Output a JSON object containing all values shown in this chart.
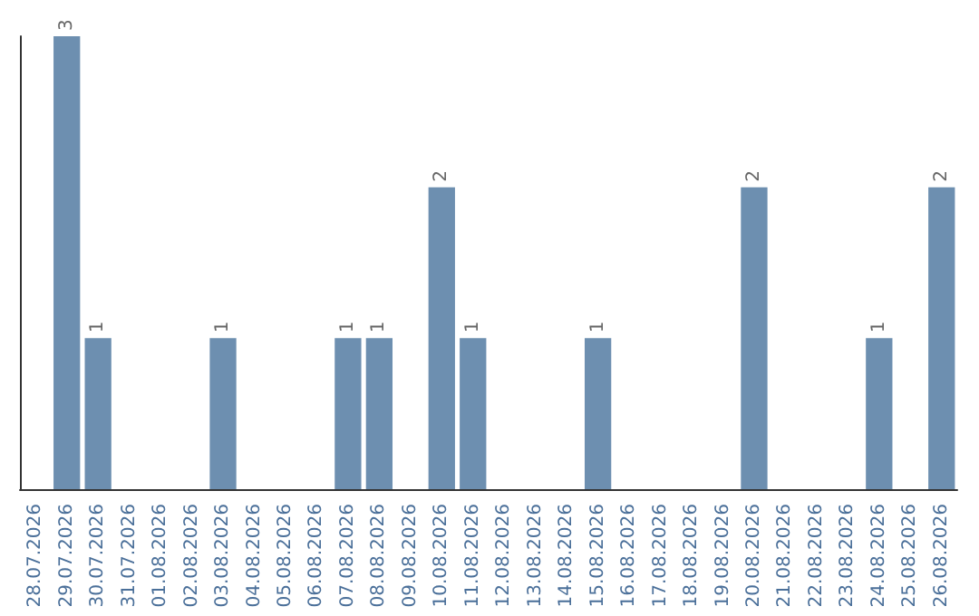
{
  "chart_data": {
    "type": "bar",
    "categories": [
      "28.07.2026",
      "29.07.2026",
      "30.07.2026",
      "31.07.2026",
      "01.08.2026",
      "02.08.2026",
      "03.08.2026",
      "04.08.2026",
      "05.08.2026",
      "06.08.2026",
      "07.08.2026",
      "08.08.2026",
      "09.08.2026",
      "10.08.2026",
      "11.08.2026",
      "12.08.2026",
      "13.08.2026",
      "14.08.2026",
      "15.08.2026",
      "16.08.2026",
      "17.08.2026",
      "18.08.2026",
      "19.08.2026",
      "20.08.2026",
      "21.08.2026",
      "22.08.2026",
      "23.08.2026",
      "24.08.2026",
      "25.08.2026",
      "26.08.2026"
    ],
    "values": [
      null,
      3,
      1,
      null,
      null,
      null,
      1,
      null,
      null,
      null,
      1,
      1,
      null,
      2,
      1,
      null,
      null,
      null,
      1,
      null,
      null,
      null,
      null,
      2,
      null,
      null,
      null,
      1,
      null,
      2
    ],
    "color": "#6d8fb0",
    "data_labels": true,
    "tick_labels": "x"
  }
}
